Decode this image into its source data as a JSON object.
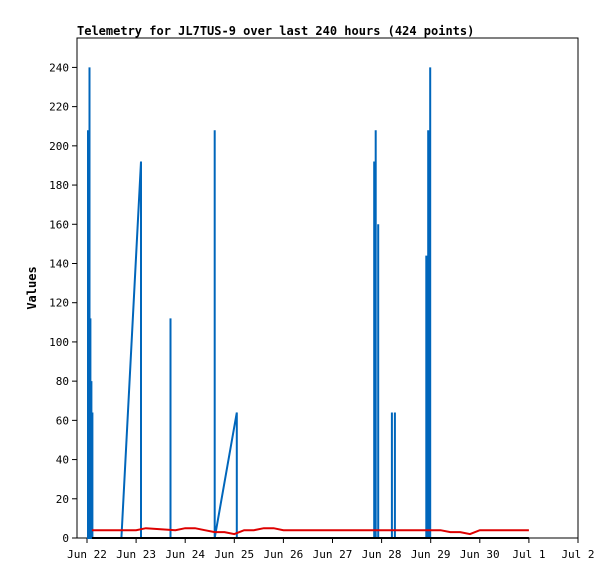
{
  "chart_data": {
    "type": "line",
    "title": "Telemetry for JL7TUS-9 over last 240 hours (424 points)",
    "xlabel": "",
    "ylabel": "Values",
    "ylim": [
      0,
      255
    ],
    "yticks": [
      0,
      20,
      40,
      60,
      80,
      100,
      120,
      140,
      160,
      180,
      200,
      220,
      240
    ],
    "xlim": [
      0,
      9.0
    ],
    "xticks": [
      {
        "x": 0,
        "label": "Jun 22"
      },
      {
        "x": 1,
        "label": "Jun 23"
      },
      {
        "x": 2,
        "label": "Jun 24"
      },
      {
        "x": 3,
        "label": "Jun 25"
      },
      {
        "x": 4,
        "label": "Jun 26"
      },
      {
        "x": 5,
        "label": "Jun 27"
      },
      {
        "x": 6,
        "label": "Jun 28"
      },
      {
        "x": 7,
        "label": "Jun 29"
      },
      {
        "x": 8,
        "label": "Jun 30"
      },
      {
        "x": 9,
        "label": "Jul 1"
      },
      {
        "x": 10,
        "label": "Jul 2"
      }
    ],
    "grid": false,
    "series": [
      {
        "color": "#0066bb",
        "x": [
          0.02,
          0.02,
          0.02,
          0.05,
          0.05,
          0.05,
          0.07,
          0.07,
          0.07,
          0.09,
          0.09,
          0.09,
          0.11,
          0.11,
          0.11,
          0.13,
          0.13,
          0.13,
          0.7,
          1.1,
          1.1,
          1.1,
          1.7,
          1.7,
          1.7,
          2.6,
          2.6,
          2.6,
          3.05,
          3.05,
          3.05,
          5.85,
          5.85,
          5.85,
          5.88,
          5.88,
          5.88,
          5.93,
          5.93,
          5.93,
          6.21,
          6.21,
          6.21,
          6.27,
          6.27,
          6.27,
          6.91,
          6.91,
          6.91,
          6.95,
          6.95,
          6.95,
          6.99,
          6.99,
          6.99
        ],
        "y": [
          0,
          208,
          0,
          0,
          240,
          0,
          0,
          112,
          0,
          0,
          80,
          0,
          0,
          64,
          0,
          0,
          0,
          0,
          0,
          192,
          192,
          0,
          0,
          112,
          0,
          0,
          208,
          0,
          64,
          64,
          0,
          0,
          192,
          0,
          0,
          208,
          0,
          0,
          160,
          0,
          0,
          64,
          0,
          0,
          64,
          0,
          0,
          144,
          0,
          0,
          208,
          0,
          0,
          240,
          0
        ]
      },
      {
        "color": "#dd0000",
        "x": [
          0.1,
          0.8,
          1.0,
          1.2,
          1.8,
          2.0,
          2.2,
          2.4,
          2.6,
          2.8,
          3.0,
          3.2,
          3.4,
          3.6,
          3.8,
          4.0,
          4.5,
          5.0,
          5.5,
          6.0,
          6.5,
          7.0,
          7.2,
          7.4,
          7.6,
          7.8,
          8.0,
          8.5,
          9.0
        ],
        "y": [
          4,
          4,
          4,
          5,
          4,
          5,
          5,
          4,
          3,
          3,
          2,
          4,
          4,
          5,
          5,
          4,
          4,
          4,
          4,
          4,
          4,
          4,
          4,
          3,
          3,
          2,
          4,
          4,
          4
        ]
      },
      {
        "color": "#000000",
        "x": [
          0.1,
          9.0
        ],
        "y": [
          0,
          0
        ]
      }
    ]
  }
}
